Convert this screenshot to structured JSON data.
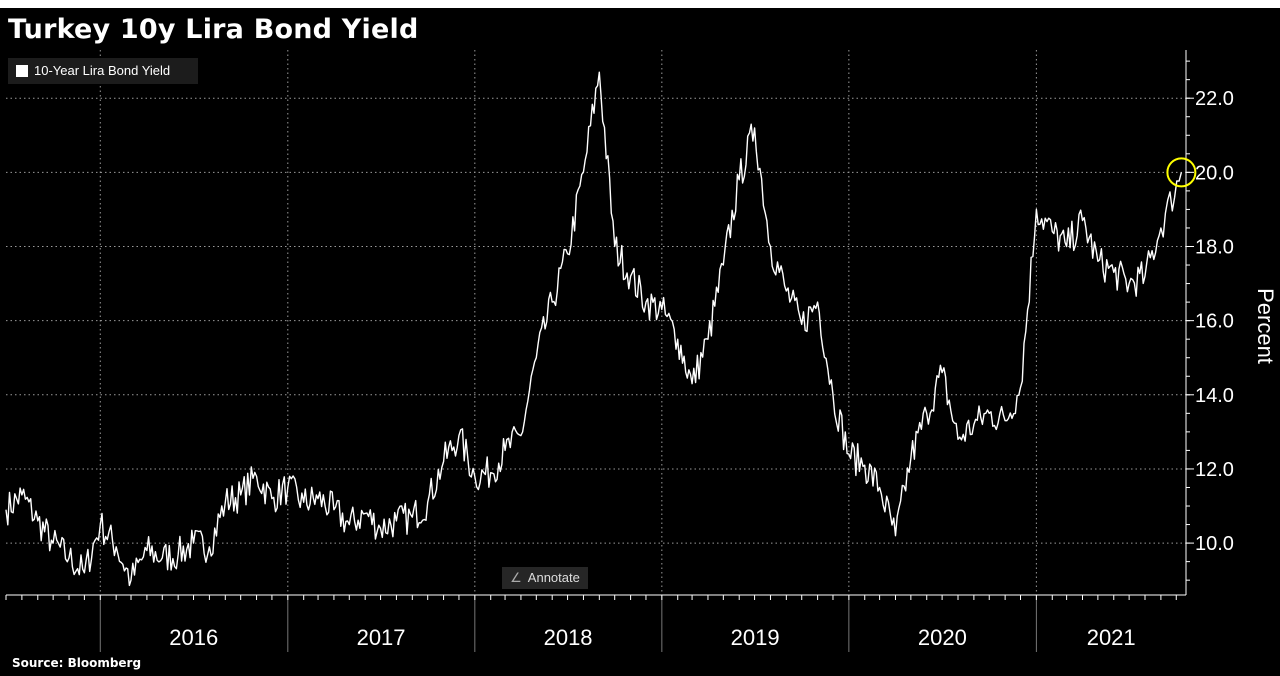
{
  "title": "Turkey 10y Lira Bond Yield",
  "source": "Source: Bloomberg",
  "annotate": {
    "label": "Annotate",
    "icon": "pencil-icon"
  },
  "colors": {
    "background": "#000000",
    "line": "#ffffff",
    "grid": "#9a9a9a",
    "highlight": "#ffff00",
    "legend_bg": "#1c1c1c"
  },
  "chart_data": {
    "type": "line",
    "title": "Turkey 10y Lira Bond Yield",
    "ylabel": "Percent",
    "xlabel": "",
    "yaxis_side": "right",
    "ylim": [
      8.6,
      23.3
    ],
    "yticks": [
      10.0,
      12.0,
      14.0,
      16.0,
      18.0,
      20.0,
      22.0
    ],
    "ytick_labels": [
      "10.0",
      "12.0",
      "14.0",
      "16.0",
      "18.0",
      "20.0",
      "22.0"
    ],
    "xlim": [
      "2015-07-01",
      "2021-10-20"
    ],
    "x_year_labels": [
      {
        "label": "2016",
        "start": "2016-01-01",
        "end": "2016-12-31"
      },
      {
        "label": "2017",
        "start": "2017-01-01",
        "end": "2017-12-31"
      },
      {
        "label": "2018",
        "start": "2018-01-01",
        "end": "2018-12-31"
      },
      {
        "label": "2019",
        "start": "2019-01-01",
        "end": "2019-12-31"
      },
      {
        "label": "2020",
        "start": "2020-01-01",
        "end": "2020-12-31"
      },
      {
        "label": "2021",
        "start": "2021-01-01",
        "end": "2021-10-20"
      }
    ],
    "grid": true,
    "legend": {
      "position": "top-left",
      "entries": [
        "10-Year Lira Bond Yield"
      ]
    },
    "highlight": {
      "x": "2021-10-11",
      "y": 20.0,
      "shape": "circle"
    },
    "series": [
      {
        "name": "10-Year Lira Bond Yield",
        "points": [
          [
            "2015-07-01",
            10.9
          ],
          [
            "2015-08-01",
            11.3
          ],
          [
            "2015-09-01",
            10.6
          ],
          [
            "2015-10-01",
            10.0
          ],
          [
            "2015-11-01",
            9.6
          ],
          [
            "2015-12-01",
            9.2
          ],
          [
            "2016-01-01",
            10.5
          ],
          [
            "2016-02-01",
            9.9
          ],
          [
            "2016-03-01",
            9.0
          ],
          [
            "2016-04-01",
            9.8
          ],
          [
            "2016-05-01",
            9.6
          ],
          [
            "2016-06-01",
            9.7
          ],
          [
            "2016-07-01",
            10.0
          ],
          [
            "2016-08-01",
            9.9
          ],
          [
            "2016-09-01",
            11.1
          ],
          [
            "2016-10-01",
            11.3
          ],
          [
            "2016-11-01",
            11.8
          ],
          [
            "2016-12-01",
            11.2
          ],
          [
            "2017-01-01",
            11.5
          ],
          [
            "2017-02-01",
            11.1
          ],
          [
            "2017-03-01",
            11.2
          ],
          [
            "2017-04-01",
            10.9
          ],
          [
            "2017-05-01",
            10.5
          ],
          [
            "2017-06-01",
            10.8
          ],
          [
            "2017-07-01",
            10.4
          ],
          [
            "2017-08-01",
            10.6
          ],
          [
            "2017-09-01",
            10.7
          ],
          [
            "2017-10-01",
            11.1
          ],
          [
            "2017-11-01",
            12.2
          ],
          [
            "2017-12-01",
            12.9
          ],
          [
            "2018-01-01",
            11.8
          ],
          [
            "2018-02-01",
            11.9
          ],
          [
            "2018-03-01",
            12.5
          ],
          [
            "2018-04-01",
            12.9
          ],
          [
            "2018-05-01",
            15.0
          ],
          [
            "2018-06-01",
            16.5
          ],
          [
            "2018-07-01",
            17.8
          ],
          [
            "2018-08-01",
            20.0
          ],
          [
            "2018-09-01",
            22.7
          ],
          [
            "2018-10-01",
            18.0
          ],
          [
            "2018-11-01",
            17.2
          ],
          [
            "2018-12-01",
            16.5
          ],
          [
            "2019-01-01",
            16.3
          ],
          [
            "2019-02-01",
            15.5
          ],
          [
            "2019-03-01",
            14.3
          ],
          [
            "2019-04-01",
            15.5
          ],
          [
            "2019-05-01",
            17.5
          ],
          [
            "2019-06-01",
            19.8
          ],
          [
            "2019-07-01",
            21.2
          ],
          [
            "2019-08-01",
            18.0
          ],
          [
            "2019-09-01",
            16.8
          ],
          [
            "2019-10-01",
            15.9
          ],
          [
            "2019-11-01",
            16.5
          ],
          [
            "2019-12-01",
            14.0
          ],
          [
            "2020-01-01",
            12.4
          ],
          [
            "2020-02-01",
            12.1
          ],
          [
            "2020-03-01",
            11.5
          ],
          [
            "2020-04-01",
            10.2
          ],
          [
            "2020-05-01",
            12.3
          ],
          [
            "2020-06-01",
            13.5
          ],
          [
            "2020-07-01",
            14.6
          ],
          [
            "2020-08-01",
            12.8
          ],
          [
            "2020-09-01",
            13.2
          ],
          [
            "2020-10-01",
            13.5
          ],
          [
            "2020-11-01",
            13.3
          ],
          [
            "2020-12-01",
            14.2
          ],
          [
            "2021-01-01",
            19.0
          ],
          [
            "2021-02-01",
            18.4
          ],
          [
            "2021-03-01",
            18.0
          ],
          [
            "2021-04-01",
            18.7
          ],
          [
            "2021-05-01",
            17.6
          ],
          [
            "2021-06-01",
            17.3
          ],
          [
            "2021-07-01",
            17.0
          ],
          [
            "2021-08-01",
            17.2
          ],
          [
            "2021-09-01",
            18.5
          ],
          [
            "2021-10-11",
            20.0
          ]
        ]
      }
    ]
  }
}
